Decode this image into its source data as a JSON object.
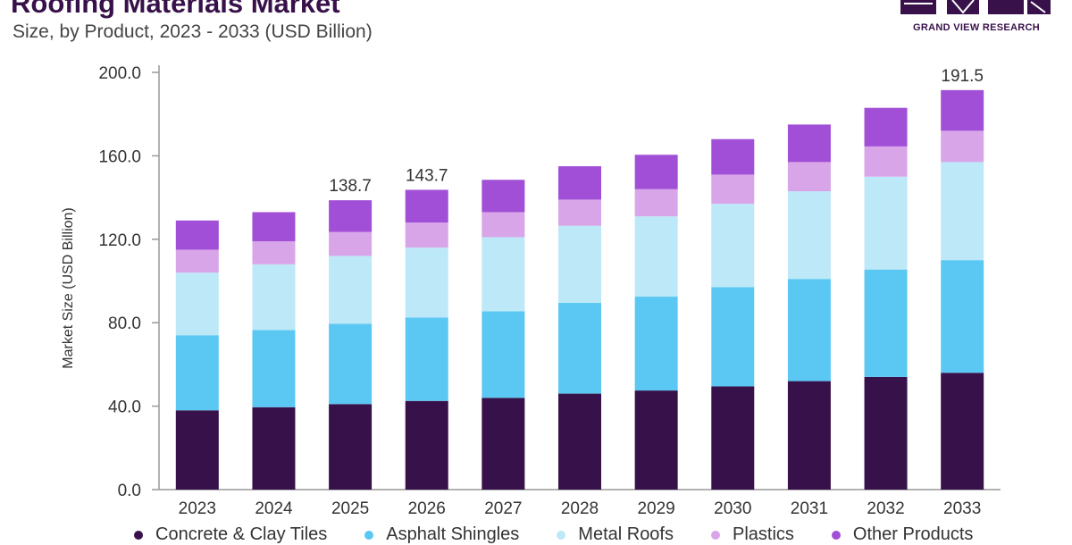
{
  "header": {
    "title": "Roofing Materials Market",
    "subtitle": "Size, by Product, 2023 - 2033 (USD Billion)"
  },
  "logo": {
    "text": "GRAND VIEW RESEARCH"
  },
  "chart_data": {
    "type": "bar",
    "stacked": true,
    "title": "Roofing Materials Market",
    "subtitle": "Size, by Product, 2023 - 2033 (USD Billion)",
    "xlabel": "",
    "ylabel": "Market Size (USD Billion)",
    "ylim": [
      0,
      200
    ],
    "yticks": [
      "0.0",
      "40.0",
      "80.0",
      "120.0",
      "160.0",
      "200.0"
    ],
    "grid": false,
    "legend_position": "bottom",
    "categories": [
      "2023",
      "2024",
      "2025",
      "2026",
      "2027",
      "2028",
      "2029",
      "2030",
      "2031",
      "2032",
      "2033"
    ],
    "series": [
      {
        "name": "Concrete & Clay Tiles",
        "color": "#37114a",
        "values": [
          38,
          39.5,
          41,
          42.5,
          44,
          46,
          47.5,
          49.5,
          52,
          54,
          56
        ]
      },
      {
        "name": "Asphalt Shingles",
        "color": "#5bc8f3",
        "values": [
          36,
          37,
          38.5,
          40,
          41.5,
          43.5,
          45,
          47.5,
          49,
          51.5,
          54
        ]
      },
      {
        "name": "Metal Roofs",
        "color": "#bde8f8",
        "values": [
          30,
          31.5,
          32.5,
          33.5,
          35.5,
          37,
          38.5,
          40,
          42,
          44.5,
          47
        ]
      },
      {
        "name": "Plastics",
        "color": "#d8a6e8",
        "values": [
          11,
          11,
          11.5,
          12,
          12,
          12.5,
          13,
          14,
          14,
          14.5,
          15
        ]
      },
      {
        "name": "Other Products",
        "color": "#a14fd6",
        "values": [
          14,
          14,
          15.2,
          15.7,
          15.5,
          16,
          16.5,
          17,
          18,
          18.5,
          19.5
        ]
      }
    ],
    "annotations": [
      {
        "category": "2025",
        "label": "138.7"
      },
      {
        "category": "2026",
        "label": "143.7"
      },
      {
        "category": "2033",
        "label": "191.5"
      }
    ]
  },
  "colors": {
    "title": "#38114a",
    "axis": "#999999",
    "text": "#333333"
  }
}
